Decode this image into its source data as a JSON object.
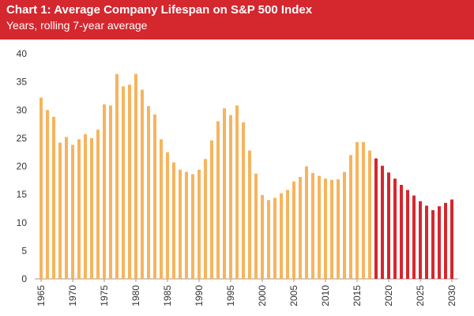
{
  "chart_data": {
    "type": "bar",
    "title": "Chart 1: Average Company Lifespan on S&P 500 Index",
    "subtitle": "Years, rolling 7-year average",
    "x": [
      1965,
      1966,
      1967,
      1968,
      1969,
      1970,
      1971,
      1972,
      1973,
      1974,
      1975,
      1976,
      1977,
      1978,
      1979,
      1980,
      1981,
      1982,
      1983,
      1984,
      1985,
      1986,
      1987,
      1988,
      1989,
      1990,
      1991,
      1992,
      1993,
      1994,
      1995,
      1996,
      1997,
      1998,
      1999,
      2000,
      2001,
      2002,
      2003,
      2004,
      2005,
      2006,
      2007,
      2008,
      2009,
      2010,
      2011,
      2012,
      2013,
      2014,
      2015,
      2016,
      2017,
      2018,
      2019,
      2020,
      2021,
      2022,
      2023,
      2024,
      2025,
      2026,
      2027,
      2028,
      2029,
      2030
    ],
    "series": [
      {
        "color": "#f6b45e",
        "values": [
          32.2,
          30,
          28.8,
          24.2,
          25.2,
          23.8,
          24.8,
          25.7,
          25,
          26.5,
          31,
          30.8,
          36.4,
          34.2,
          34.5,
          36.4,
          33.6,
          30.7,
          29.2,
          24.8,
          22.5,
          20.7,
          19.4,
          19,
          18.6,
          19.4,
          21.3,
          24.6,
          28,
          30.3,
          29.1,
          30.8,
          27.8,
          22.8,
          18.7,
          14.9,
          14,
          14.4,
          15.2,
          15.8,
          17.3,
          18.1,
          20,
          18.8,
          18.3,
          17.8,
          17.6,
          17.7,
          19,
          22,
          24.3,
          24.3,
          22.8,
          null,
          null,
          null,
          null,
          null,
          null,
          null,
          null,
          null,
          null,
          null,
          null,
          null
        ]
      },
      {
        "color": "#d5272e",
        "values": [
          null,
          null,
          null,
          null,
          null,
          null,
          null,
          null,
          null,
          null,
          null,
          null,
          null,
          null,
          null,
          null,
          null,
          null,
          null,
          null,
          null,
          null,
          null,
          null,
          null,
          null,
          null,
          null,
          null,
          null,
          null,
          null,
          null,
          null,
          null,
          null,
          null,
          null,
          null,
          null,
          null,
          null,
          null,
          null,
          null,
          null,
          null,
          null,
          null,
          null,
          null,
          null,
          null,
          21.4,
          20.1,
          18.9,
          17.8,
          16.7,
          15.8,
          14.8,
          13.8,
          13,
          12.2,
          12.9,
          13.5,
          14.1
        ]
      }
    ],
    "xlim": [
      1964,
      2031
    ],
    "xticks": [
      1965,
      1970,
      1975,
      1980,
      1985,
      1990,
      1995,
      2000,
      2005,
      2010,
      2015,
      2020,
      2025,
      2030
    ],
    "ylim": [
      0,
      40
    ],
    "yticks": [
      0,
      5,
      10,
      15,
      20,
      25,
      30,
      35,
      40
    ],
    "grid": false
  }
}
